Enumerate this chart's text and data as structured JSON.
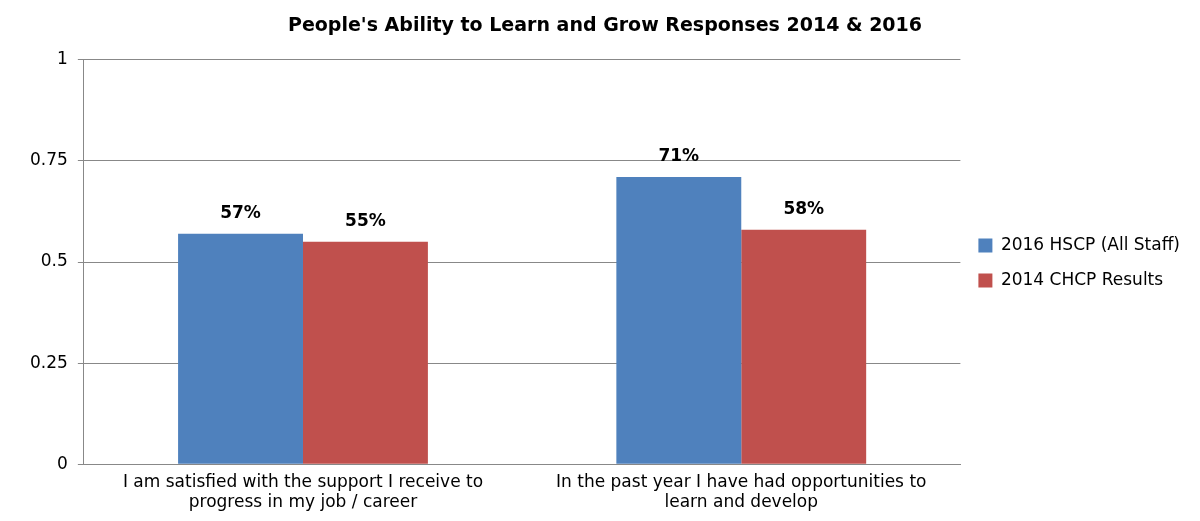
{
  "chart_data": {
    "type": "bar",
    "title": "People's Ability to Learn and Grow Responses 2014 & 2016",
    "categories": [
      "I am satisfied with the support I receive to progress in my job / career",
      "In the past year I have had opportunities to learn and develop"
    ],
    "series": [
      {
        "name": "2016 HSCP (All Staff)",
        "color": "#4f81bd",
        "values": [
          0.57,
          0.71
        ],
        "value_labels": [
          "57%",
          "71%"
        ]
      },
      {
        "name": "2014 CHCP Results",
        "color": "#c0504d",
        "values": [
          0.55,
          0.58
        ],
        "value_labels": [
          "55%",
          "58%"
        ]
      }
    ],
    "ylim": [
      0,
      1
    ],
    "yticks": [
      0,
      0.25,
      0.5,
      0.75,
      1
    ],
    "grid": "y",
    "legend": "right"
  }
}
